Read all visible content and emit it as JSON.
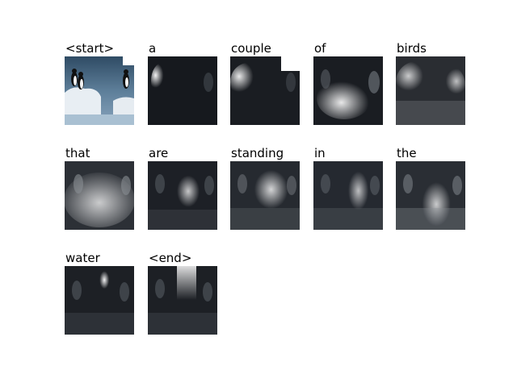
{
  "figure": {
    "tokens": [
      {
        "word": "<start>",
        "attention": "none"
      },
      {
        "word": "a",
        "attention": "left"
      },
      {
        "word": "couple",
        "attention": "left"
      },
      {
        "word": "of",
        "attention": "lower"
      },
      {
        "word": "birds",
        "attention": "broad"
      },
      {
        "word": "that",
        "attention": "broad"
      },
      {
        "word": "are",
        "attention": "center"
      },
      {
        "word": "standing",
        "attention": "center"
      },
      {
        "word": "in",
        "attention": "center"
      },
      {
        "word": "the",
        "attention": "center"
      },
      {
        "word": "water",
        "attention": "center-top"
      },
      {
        "word": "<end>",
        "attention": "center-top"
      }
    ],
    "colors": {
      "background": "#ffffff",
      "dark_overlay": "#15181d",
      "water": "#5d7e99",
      "ice": "#e8eef3"
    }
  }
}
